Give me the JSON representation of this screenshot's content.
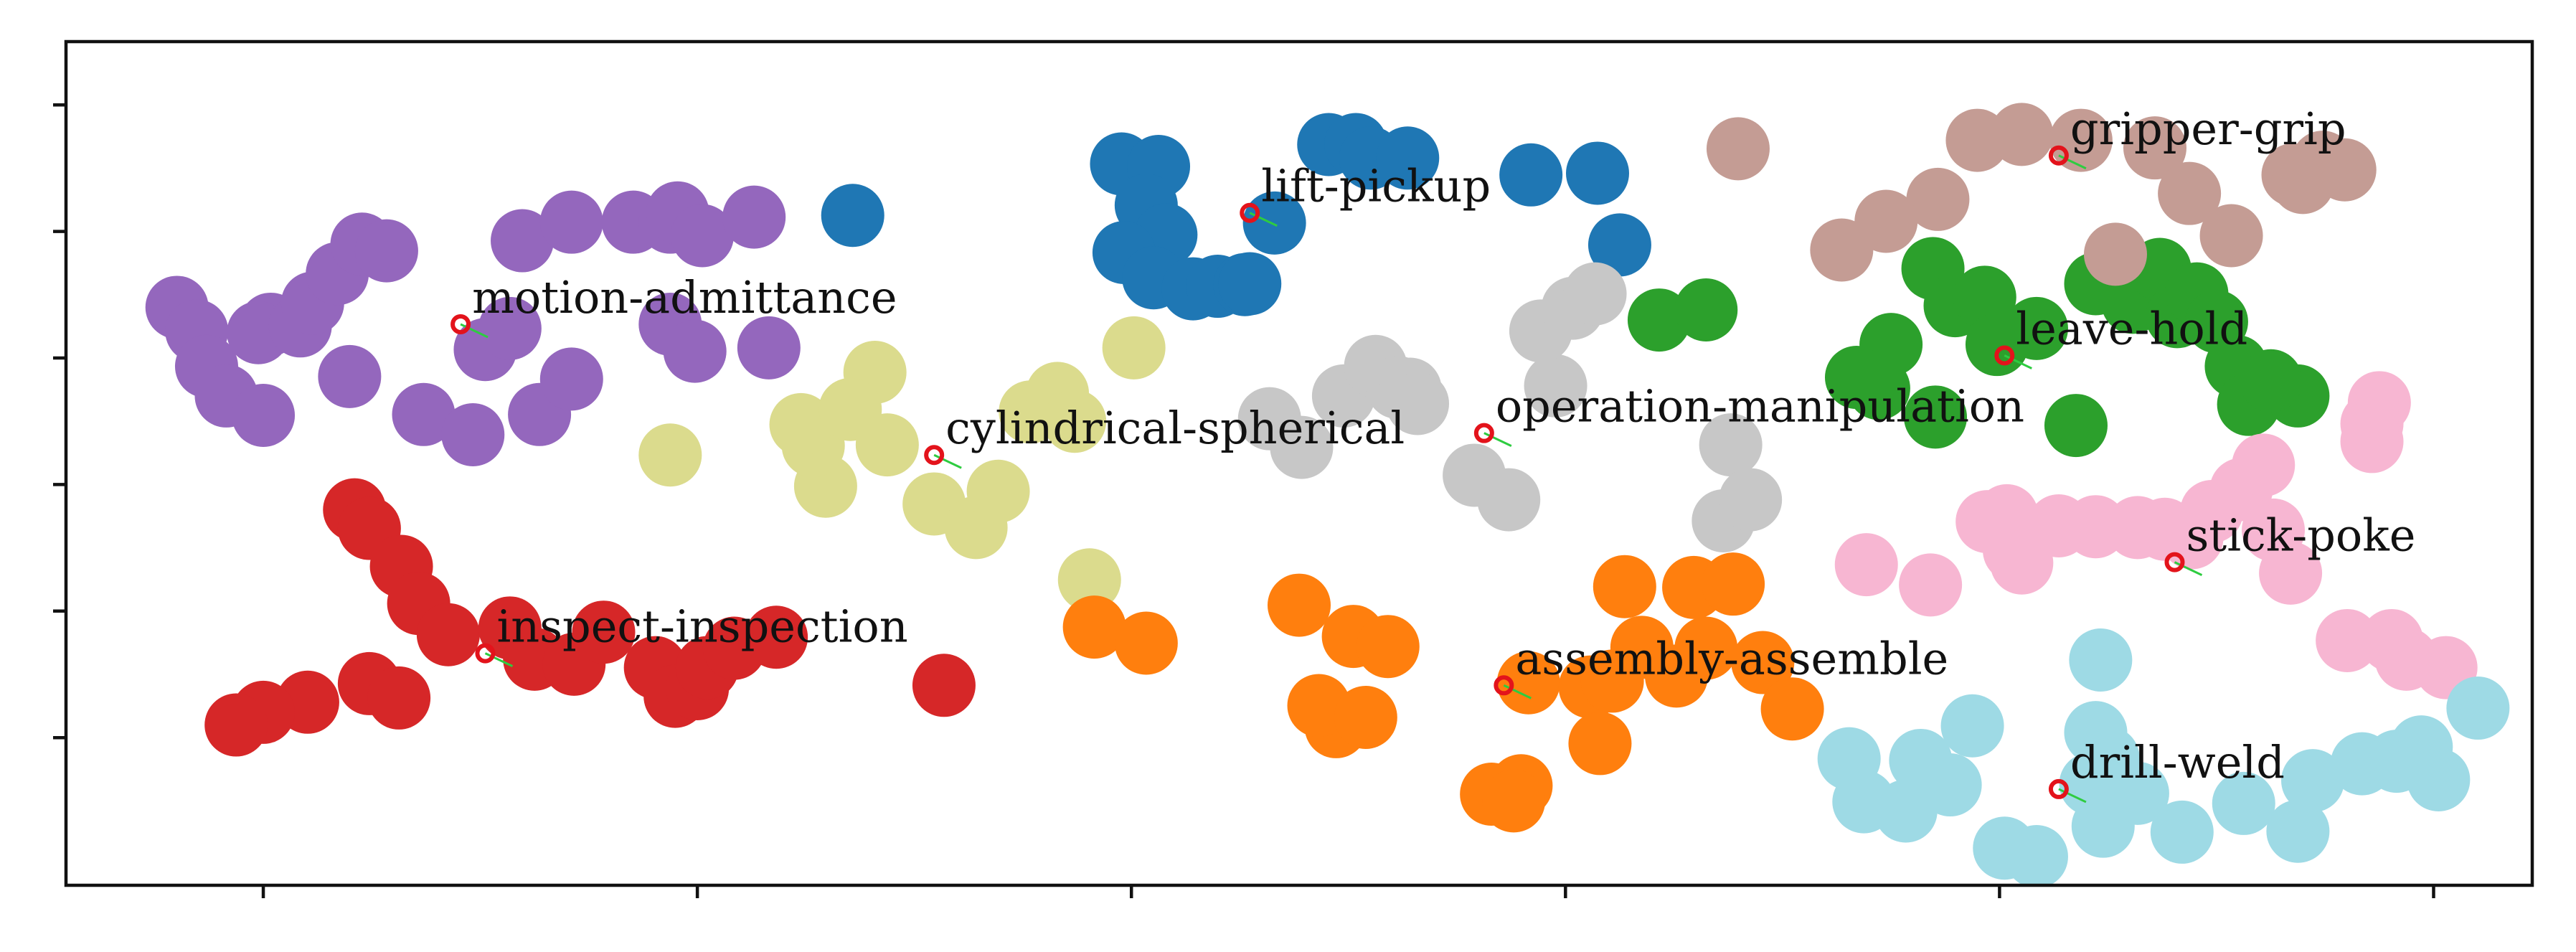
{
  "chart_data": {
    "type": "scatter",
    "title": "",
    "xlabel": "",
    "ylabel": "",
    "xlim": [
      0,
      1000
    ],
    "ylim": [
      0,
      1000
    ],
    "xticks": [
      80,
      256,
      432,
      608,
      784,
      960
    ],
    "yticks": [
      925,
      775,
      625,
      475,
      325,
      175
    ],
    "grid": false,
    "legend": "none",
    "point_radius": 44,
    "series": [
      {
        "color": "#9467bd",
        "points": [
          [
            45,
            685
          ],
          [
            53,
            657
          ],
          [
            57,
            615
          ],
          [
            65,
            580
          ],
          [
            80,
            557
          ],
          [
            83,
            665
          ],
          [
            78,
            655
          ],
          [
            95,
            663
          ],
          [
            100,
            690
          ],
          [
            110,
            725
          ],
          [
            120,
            760
          ],
          [
            130,
            752
          ],
          [
            115,
            603
          ],
          [
            145,
            558
          ],
          [
            165,
            534
          ],
          [
            170,
            635
          ],
          [
            185,
            764
          ],
          [
            205,
            786
          ],
          [
            230,
            786
          ],
          [
            245,
            786
          ],
          [
            248,
            797
          ],
          [
            258,
            770
          ],
          [
            279,
            792
          ],
          [
            192,
            558
          ],
          [
            205,
            600
          ],
          [
            180,
            660
          ],
          [
            245,
            665
          ],
          [
            255,
            633
          ],
          [
            285,
            637
          ]
        ]
      },
      {
        "color": "#1f77b4",
        "points": [
          [
            428,
            855
          ],
          [
            443,
            852
          ],
          [
            438,
            806
          ],
          [
            446,
            771
          ],
          [
            429,
            750
          ],
          [
            441,
            720
          ],
          [
            457,
            707
          ],
          [
            467,
            710
          ],
          [
            478,
            712
          ],
          [
            480,
            713
          ],
          [
            490,
            785
          ],
          [
            512,
            878
          ],
          [
            523,
            878
          ],
          [
            529,
            862
          ],
          [
            544,
            862
          ],
          [
            594,
            842
          ],
          [
            621,
            844
          ],
          [
            630,
            759
          ],
          [
            319,
            794
          ]
        ]
      },
      {
        "color": "#d62728",
        "points": [
          [
            117,
            445
          ],
          [
            123,
            423
          ],
          [
            136,
            378
          ],
          [
            143,
            334
          ],
          [
            155,
            297
          ],
          [
            180,
            305
          ],
          [
            190,
            268
          ],
          [
            206,
            262
          ],
          [
            218,
            300
          ],
          [
            239,
            258
          ],
          [
            247,
            224
          ],
          [
            256,
            233
          ],
          [
            260,
            258
          ],
          [
            271,
            281
          ],
          [
            288,
            294
          ],
          [
            98,
            217
          ],
          [
            123,
            239
          ],
          [
            135,
            222
          ],
          [
            80,
            205
          ],
          [
            69,
            190
          ],
          [
            356,
            237
          ]
        ]
      },
      {
        "color": "#dbdb8d",
        "points": [
          [
            245,
            510
          ],
          [
            328,
            608
          ],
          [
            308,
            473
          ],
          [
            303,
            521
          ],
          [
            298,
            546
          ],
          [
            318,
            564
          ],
          [
            333,
            522
          ],
          [
            352,
            452
          ],
          [
            369,
            424
          ],
          [
            378,
            467
          ],
          [
            391,
            561
          ],
          [
            402,
            583
          ],
          [
            409,
            550
          ],
          [
            433,
            637
          ],
          [
            415,
            362
          ]
        ]
      },
      {
        "color": "#ff7f0e",
        "points": [
          [
            417,
            306
          ],
          [
            438,
            287
          ],
          [
            500,
            332
          ],
          [
            522,
            295
          ],
          [
            536,
            283
          ],
          [
            515,
            188
          ],
          [
            508,
            213
          ],
          [
            527,
            199
          ],
          [
            590,
            118
          ],
          [
            578,
            108
          ],
          [
            587,
            100
          ],
          [
            593,
            240
          ],
          [
            618,
            235
          ],
          [
            627,
            242
          ],
          [
            639,
            282
          ],
          [
            653,
            248
          ],
          [
            622,
            168
          ],
          [
            632,
            354
          ],
          [
            660,
            353
          ],
          [
            676,
            357
          ],
          [
            665,
            281
          ],
          [
            688,
            264
          ],
          [
            700,
            209
          ]
        ]
      },
      {
        "color": "#c7c7c7",
        "points": [
          [
            501,
            519
          ],
          [
            488,
            553
          ],
          [
            518,
            580
          ],
          [
            531,
            615
          ],
          [
            540,
            590
          ],
          [
            545,
            588
          ],
          [
            548,
            571
          ],
          [
            571,
            486
          ],
          [
            585,
            457
          ],
          [
            604,
            592
          ],
          [
            598,
            657
          ],
          [
            611,
            684
          ],
          [
            620,
            701
          ],
          [
            675,
            522
          ],
          [
            672,
            432
          ],
          [
            683,
            457
          ]
        ]
      },
      {
        "color": "#2ca02c",
        "points": [
          [
            646,
            670
          ],
          [
            665,
            682
          ],
          [
            740,
            641
          ],
          [
            757,
            731
          ],
          [
            766,
            687
          ],
          [
            778,
            697
          ],
          [
            783,
            641
          ],
          [
            799,
            660
          ],
          [
            815,
            545
          ],
          [
            823,
            713
          ],
          [
            838,
            691
          ],
          [
            849,
            730
          ],
          [
            856,
            674
          ],
          [
            864,
            701
          ],
          [
            872,
            668
          ],
          [
            880,
            615
          ],
          [
            885,
            570
          ],
          [
            905,
            580
          ],
          [
            894,
            598
          ],
          [
            735,
            589
          ],
          [
            726,
            602
          ],
          [
            758,
            555
          ]
        ]
      },
      {
        "color": "#c49c94",
        "points": [
          [
            678,
            873
          ],
          [
            775,
            883
          ],
          [
            793,
            890
          ],
          [
            817,
            883
          ],
          [
            847,
            874
          ],
          [
            861,
            820
          ],
          [
            878,
            770
          ],
          [
            903,
            842
          ],
          [
            907,
            833
          ],
          [
            915,
            857
          ],
          [
            924,
            848
          ],
          [
            831,
            748
          ],
          [
            759,
            813
          ],
          [
            720,
            753
          ],
          [
            738,
            787
          ]
        ]
      },
      {
        "color": "#f7b6d2",
        "points": [
          [
            730,
            380
          ],
          [
            756,
            356
          ],
          [
            779,
            431
          ],
          [
            787,
            438
          ],
          [
            793,
            382
          ],
          [
            790,
            397
          ],
          [
            808,
            426
          ],
          [
            823,
            425
          ],
          [
            840,
            424
          ],
          [
            851,
            422
          ],
          [
            862,
            412
          ],
          [
            870,
            443
          ],
          [
            882,
            469
          ],
          [
            891,
            498
          ],
          [
            895,
            421
          ],
          [
            902,
            370
          ],
          [
            935,
            547
          ],
          [
            938,
            572
          ],
          [
            935,
            526
          ],
          [
            925,
            290
          ],
          [
            943,
            290
          ],
          [
            949,
            268
          ],
          [
            965,
            258
          ]
        ]
      },
      {
        "color": "#9edae5",
        "points": [
          [
            752,
            148
          ],
          [
            723,
            150
          ],
          [
            729,
            99
          ],
          [
            746,
            88
          ],
          [
            764,
            119
          ],
          [
            773,
            189
          ],
          [
            823,
            181
          ],
          [
            825,
            267
          ],
          [
            828,
            151
          ],
          [
            840,
            109
          ],
          [
            786,
            44
          ],
          [
            799,
            34
          ],
          [
            821,
            120
          ],
          [
            826,
            70
          ],
          [
            858,
            63
          ],
          [
            883,
            97
          ],
          [
            905,
            64
          ],
          [
            911,
            124
          ],
          [
            931,
            144
          ],
          [
            945,
            147
          ],
          [
            955,
            164
          ],
          [
            962,
            125
          ],
          [
            978,
            210
          ]
        ]
      }
    ],
    "annotations": [
      {
        "label": "motion-admittance",
        "x": 160,
        "y": 665
      },
      {
        "label": "lift-pickup",
        "x": 480,
        "y": 797
      },
      {
        "label": "gripper-grip",
        "x": 808,
        "y": 865
      },
      {
        "label": "leave-hold",
        "x": 786,
        "y": 628
      },
      {
        "label": "cylindrical-spherical",
        "x": 352,
        "y": 510
      },
      {
        "label": "operation-manipulation",
        "x": 575,
        "y": 536
      },
      {
        "label": "stick-poke",
        "x": 855,
        "y": 383
      },
      {
        "label": "inspect-inspection",
        "x": 170,
        "y": 275
      },
      {
        "label": "assembly-assemble",
        "x": 583,
        "y": 237
      },
      {
        "label": "drill-weld",
        "x": 808,
        "y": 114
      }
    ]
  }
}
